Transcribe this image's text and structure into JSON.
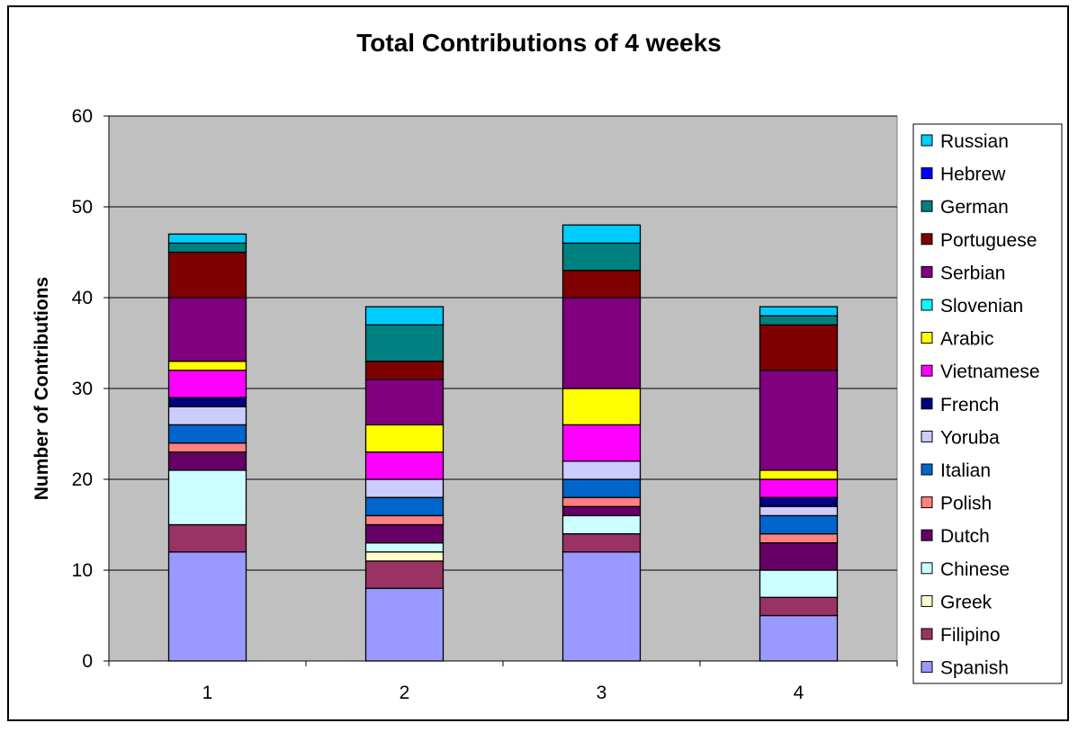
{
  "chart_data": {
    "type": "bar",
    "stacked": true,
    "title": "Total Contributions of 4 weeks",
    "xlabel": "",
    "ylabel": "Number of Contributions",
    "categories": [
      "1",
      "2",
      "3",
      "4"
    ],
    "ylim": [
      0,
      60
    ],
    "yticks": [
      "0",
      "10",
      "20",
      "30",
      "40",
      "50",
      "60"
    ],
    "grid": true,
    "plot_background": "#C0C0C0",
    "legend_position": "right",
    "series": [
      {
        "name": "Spanish",
        "color": "#9999FF",
        "values": [
          12,
          8,
          12,
          5
        ]
      },
      {
        "name": "Filipino",
        "color": "#993366",
        "values": [
          3,
          3,
          2,
          2
        ]
      },
      {
        "name": "Greek",
        "color": "#FFFFCC",
        "values": [
          0,
          1,
          0,
          0
        ]
      },
      {
        "name": "Chinese",
        "color": "#CCFFFF",
        "values": [
          6,
          1,
          2,
          3
        ]
      },
      {
        "name": "Dutch",
        "color": "#660066",
        "values": [
          2,
          2,
          1,
          3
        ]
      },
      {
        "name": "Polish",
        "color": "#FF8080",
        "values": [
          1,
          1,
          1,
          1
        ]
      },
      {
        "name": "Italian",
        "color": "#0066CC",
        "values": [
          2,
          2,
          2,
          2
        ]
      },
      {
        "name": "Yoruba",
        "color": "#CCCCFF",
        "values": [
          2,
          2,
          2,
          1
        ]
      },
      {
        "name": "French",
        "color": "#000080",
        "values": [
          1,
          0,
          0,
          1
        ]
      },
      {
        "name": "Vietnamese",
        "color": "#FF00FF",
        "values": [
          3,
          3,
          4,
          2
        ]
      },
      {
        "name": "Arabic",
        "color": "#FFFF00",
        "values": [
          1,
          3,
          4,
          1
        ]
      },
      {
        "name": "Slovenian",
        "color": "#00FFFF",
        "values": [
          0,
          0,
          0,
          0
        ]
      },
      {
        "name": "Serbian",
        "color": "#800080",
        "values": [
          7,
          5,
          10,
          11
        ]
      },
      {
        "name": "Portuguese",
        "color": "#800000",
        "values": [
          5,
          2,
          3,
          5
        ]
      },
      {
        "name": "German",
        "color": "#008080",
        "values": [
          1,
          4,
          3,
          1
        ]
      },
      {
        "name": "Hebrew",
        "color": "#0000FF",
        "values": [
          0,
          0,
          0,
          0
        ]
      },
      {
        "name": "Russian",
        "color": "#00CCFF",
        "values": [
          1,
          2,
          2,
          1
        ]
      }
    ]
  }
}
